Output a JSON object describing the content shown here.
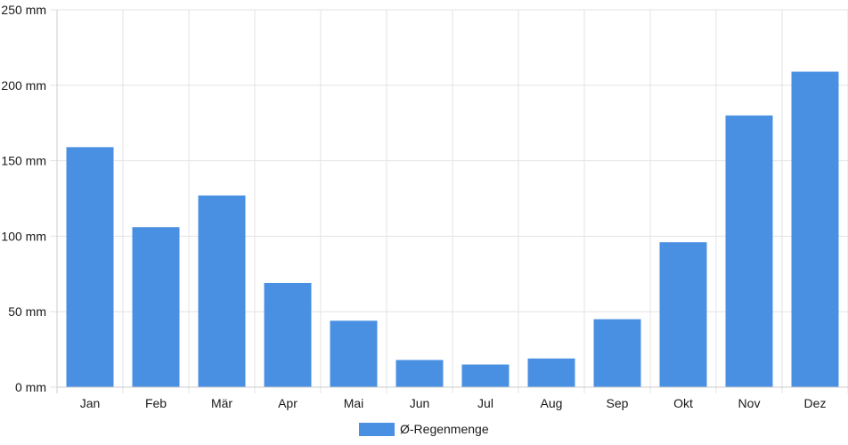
{
  "chart_data": {
    "type": "bar",
    "categories": [
      "Jan",
      "Feb",
      "Mär",
      "Apr",
      "Mai",
      "Jun",
      "Jul",
      "Aug",
      "Sep",
      "Okt",
      "Nov",
      "Dez"
    ],
    "series": [
      {
        "name": "Ø-Regenmenge",
        "color": "#4a90e2",
        "values": [
          159,
          106,
          127,
          69,
          44,
          18,
          15,
          19,
          45,
          96,
          180,
          209
        ]
      }
    ],
    "y_ticks": [
      "0 mm",
      "50 mm",
      "100 mm",
      "150 mm",
      "200 mm",
      "250 mm"
    ],
    "ylim": [
      0,
      250
    ],
    "grid": true,
    "legend_position": "bottom-center"
  }
}
